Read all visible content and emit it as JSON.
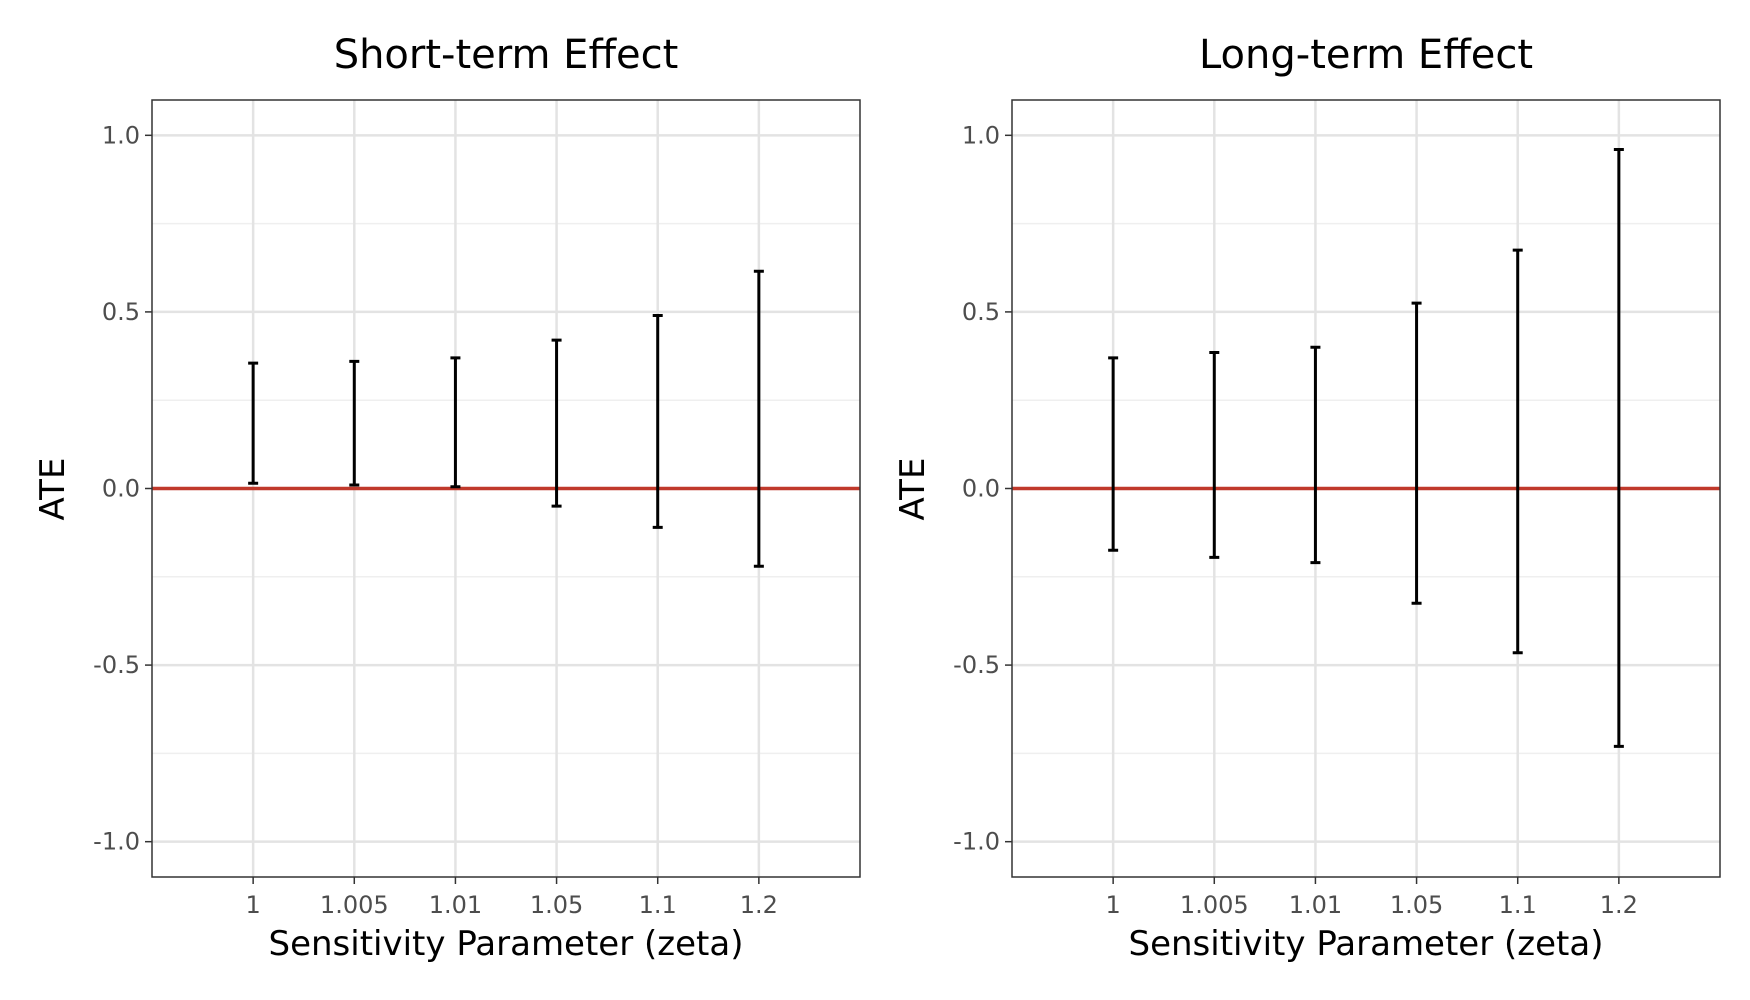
{
  "chart_data": [
    {
      "type": "errorbar",
      "title": "Short-term Effect",
      "xlabel": "Sensitivity Parameter (zeta)",
      "ylabel": "ATE",
      "categories": [
        "1",
        "1.005",
        "1.01",
        "1.05",
        "1.1",
        "1.2"
      ],
      "lower": [
        0.015,
        0.01,
        0.005,
        -0.05,
        -0.11,
        -0.22
      ],
      "upper": [
        0.355,
        0.36,
        0.37,
        0.42,
        0.49,
        0.615
      ],
      "ylim": [
        -1.1,
        1.1
      ],
      "yticks": [
        -1.0,
        -0.5,
        0.0,
        0.5,
        1.0
      ],
      "ytick_labels": [
        "-1.0",
        "-0.5",
        "0.0",
        "0.5",
        "1.0"
      ],
      "reference_line": {
        "y": 0,
        "color": "#c0392b"
      },
      "grid": true
    },
    {
      "type": "errorbar",
      "title": "Long-term Effect",
      "xlabel": "Sensitivity Parameter (zeta)",
      "ylabel": "ATE",
      "categories": [
        "1",
        "1.005",
        "1.01",
        "1.05",
        "1.1",
        "1.2"
      ],
      "lower": [
        -0.175,
        -0.195,
        -0.21,
        -0.325,
        -0.465,
        -0.73
      ],
      "upper": [
        0.37,
        0.385,
        0.4,
        0.525,
        0.675,
        0.96
      ],
      "ylim": [
        -1.1,
        1.1
      ],
      "yticks": [
        -1.0,
        -0.5,
        0.0,
        0.5,
        1.0
      ],
      "ytick_labels": [
        "-1.0",
        "-0.5",
        "0.0",
        "0.5",
        "1.0"
      ],
      "reference_line": {
        "y": 0,
        "color": "#c0392b"
      },
      "grid": true
    }
  ]
}
